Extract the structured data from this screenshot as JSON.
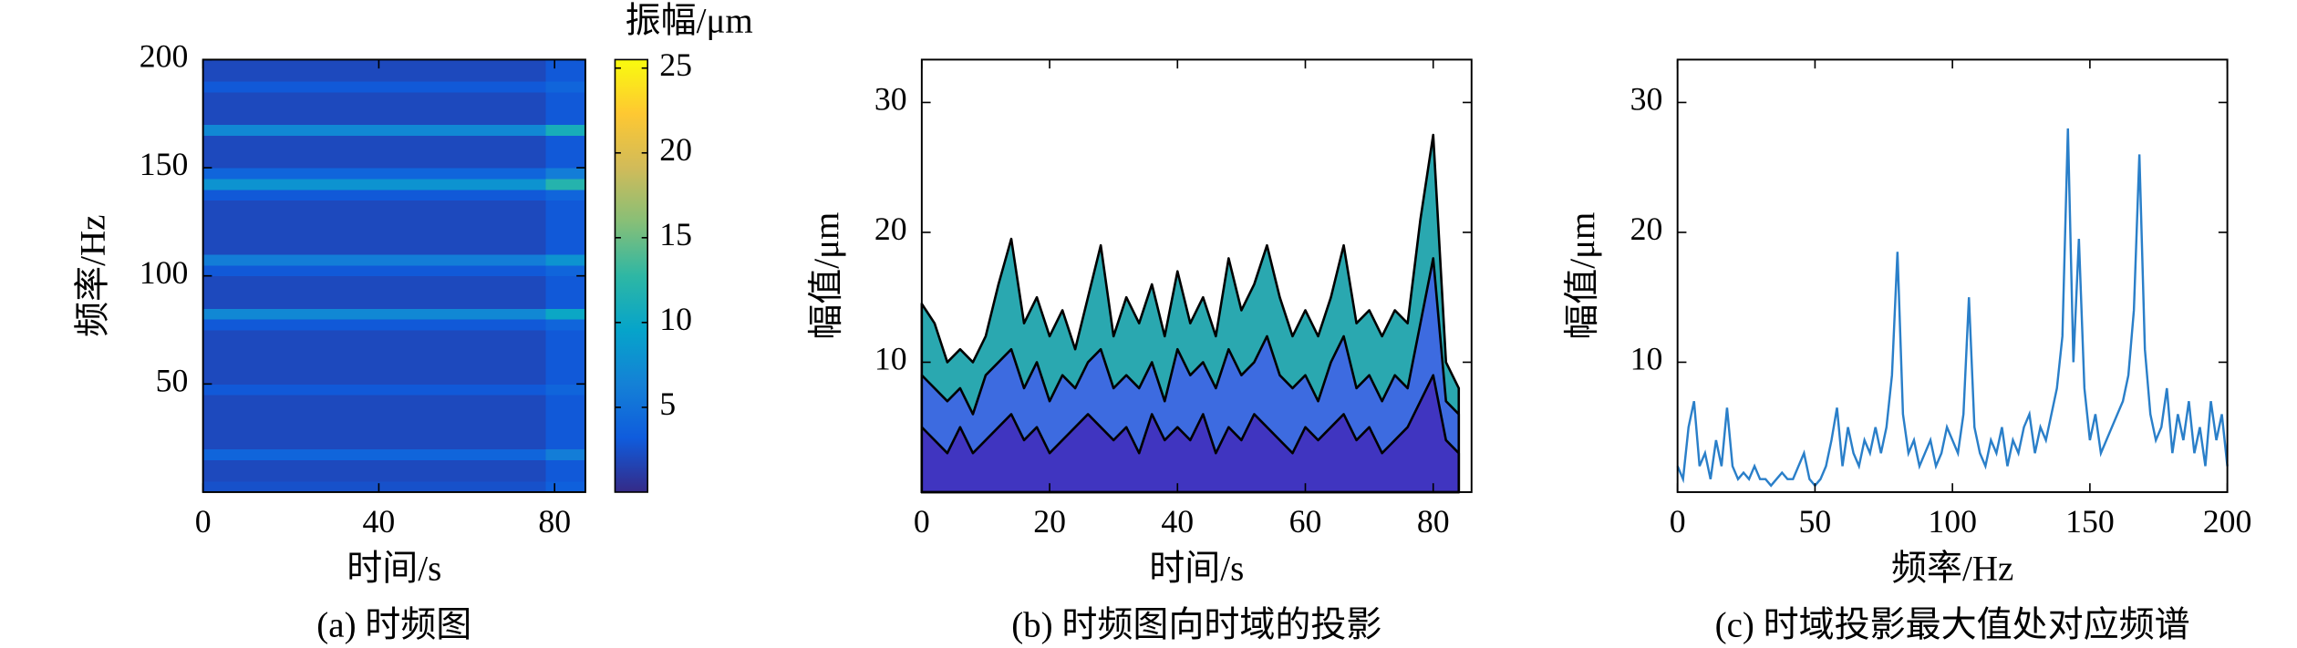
{
  "chart_data": [
    {
      "type": "heatmap",
      "caption": "(a) 时频图",
      "xlabel": "时间/s",
      "ylabel": "频率/Hz",
      "x_bins": [
        0,
        20,
        40,
        60,
        78,
        87
      ],
      "y_bins": [
        0,
        5,
        10,
        15,
        20,
        25,
        30,
        35,
        40,
        45,
        50,
        55,
        60,
        65,
        70,
        75,
        80,
        85,
        90,
        95,
        100,
        105,
        110,
        115,
        120,
        125,
        130,
        135,
        140,
        145,
        150,
        155,
        160,
        165,
        170,
        175,
        180,
        185,
        190,
        195,
        200
      ],
      "z": [
        [
          2.5,
          2.5,
          2.5,
          2.5,
          3.5
        ],
        [
          2,
          2,
          2,
          2,
          3
        ],
        [
          2,
          2,
          2,
          2,
          3
        ],
        [
          4,
          4,
          4,
          4,
          6
        ],
        [
          2,
          2,
          2,
          2,
          3
        ],
        [
          2,
          2,
          2,
          2,
          3
        ],
        [
          2,
          2,
          2,
          2,
          3
        ],
        [
          2,
          2,
          2,
          2,
          3
        ],
        [
          2,
          2,
          2,
          2,
          3
        ],
        [
          3,
          3,
          3,
          3,
          4
        ],
        [
          2,
          2,
          2,
          2,
          3
        ],
        [
          2,
          2,
          2,
          2,
          3
        ],
        [
          2,
          2,
          2,
          2,
          3
        ],
        [
          2,
          2,
          2,
          2,
          3
        ],
        [
          2,
          2,
          2,
          2,
          3
        ],
        [
          3,
          3,
          3,
          3,
          4
        ],
        [
          7,
          7,
          7,
          7,
          10
        ],
        [
          2,
          2,
          2,
          2,
          3
        ],
        [
          2,
          2,
          2,
          2,
          3
        ],
        [
          2,
          2,
          2,
          2,
          3
        ],
        [
          3,
          3,
          3,
          3,
          4
        ],
        [
          6,
          6,
          6,
          6,
          8
        ],
        [
          2,
          2,
          2,
          2,
          3
        ],
        [
          2,
          2,
          2,
          2,
          3
        ],
        [
          2,
          2,
          2,
          2,
          3
        ],
        [
          2,
          2,
          2,
          2,
          3
        ],
        [
          2,
          2,
          2,
          2,
          3
        ],
        [
          3,
          3,
          3,
          3,
          4
        ],
        [
          8,
          8,
          8,
          8,
          12
        ],
        [
          4,
          4,
          4,
          4,
          6
        ],
        [
          2,
          2,
          2,
          2,
          3
        ],
        [
          2,
          2,
          2,
          2,
          3
        ],
        [
          2,
          2,
          2,
          2,
          3
        ],
        [
          7,
          7,
          7,
          7,
          11
        ],
        [
          2,
          2,
          2,
          2,
          3
        ],
        [
          2,
          2,
          2,
          2,
          3
        ],
        [
          2,
          2,
          2,
          2,
          3
        ],
        [
          3,
          3,
          3,
          3,
          4
        ],
        [
          2,
          2,
          2,
          2,
          3
        ],
        [
          2,
          2,
          2,
          2,
          3
        ]
      ],
      "xlim": [
        0,
        87
      ],
      "ylim": [
        0,
        200
      ],
      "xticks": [
        0,
        40,
        80
      ],
      "yticks": [
        50,
        100,
        150,
        200
      ],
      "colormap": [
        "#352a87",
        "#0f5cdd",
        "#1481d6",
        "#06a4ca",
        "#2eb7a4",
        "#87bf77",
        "#d1bb59",
        "#fec832",
        "#f9fb0e"
      ],
      "colorbar": {
        "label": "振幅/μm",
        "lim": [
          0,
          25.5
        ],
        "ticks": [
          5,
          10,
          15,
          20,
          25
        ]
      }
    },
    {
      "type": "area",
      "caption": "(b) 时频图向时域的投影",
      "xlabel": "时间/s",
      "ylabel": "幅值/μm",
      "x": [
        0,
        2,
        4,
        6,
        8,
        10,
        12,
        14,
        16,
        18,
        20,
        22,
        24,
        26,
        28,
        30,
        32,
        34,
        36,
        38,
        40,
        42,
        44,
        46,
        48,
        50,
        52,
        54,
        56,
        58,
        60,
        62,
        64,
        66,
        68,
        70,
        72,
        74,
        76,
        78,
        80,
        82,
        84
      ],
      "series": [
        {
          "color": "#2aa8b0",
          "values": [
            14.5,
            13,
            10,
            11,
            10,
            12,
            16,
            19.5,
            13,
            15,
            12,
            14,
            11,
            15,
            19,
            12,
            15,
            13,
            16,
            12,
            17,
            13,
            15,
            12,
            18,
            14,
            16,
            19,
            15,
            12,
            14,
            12,
            15,
            19,
            13,
            14,
            12,
            14,
            13,
            21,
            27.5,
            10,
            8
          ]
        },
        {
          "color": "#3d6be0",
          "values": [
            9,
            8,
            7,
            8,
            6,
            9,
            10,
            11,
            8,
            10,
            7,
            9,
            8,
            10,
            11,
            8,
            9,
            8,
            10,
            7,
            11,
            9,
            10,
            8,
            11,
            9,
            10,
            12,
            9,
            8,
            9,
            7,
            10,
            12,
            8,
            9,
            7,
            9,
            8,
            13,
            18,
            7,
            6
          ]
        },
        {
          "color": "#4035c0",
          "values": [
            5,
            4,
            3,
            5,
            3,
            4,
            5,
            6,
            4,
            5,
            3,
            4,
            5,
            6,
            5,
            4,
            5,
            3,
            6,
            4,
            5,
            4,
            6,
            3,
            5,
            4,
            6,
            5,
            4,
            3,
            5,
            4,
            5,
            6,
            4,
            5,
            3,
            4,
            5,
            7,
            9,
            4,
            3
          ]
        }
      ],
      "stroke": "#000000",
      "xlim": [
        0,
        86
      ],
      "ylim": [
        0,
        33.3
      ],
      "xticks": [
        0,
        20,
        40,
        60,
        80
      ],
      "yticks": [
        10,
        20,
        30
      ]
    },
    {
      "type": "line",
      "caption": "(c) 时域投影最大值处对应频谱",
      "xlabel": "频率/Hz",
      "ylabel": "幅值/μm",
      "x": [
        0,
        2,
        4,
        6,
        8,
        10,
        12,
        14,
        16,
        18,
        20,
        22,
        24,
        26,
        28,
        30,
        32,
        34,
        36,
        38,
        40,
        42,
        44,
        46,
        48,
        50,
        52,
        54,
        56,
        58,
        60,
        62,
        64,
        66,
        68,
        70,
        72,
        74,
        76,
        78,
        80,
        82,
        84,
        86,
        88,
        90,
        92,
        94,
        96,
        98,
        100,
        102,
        104,
        106,
        108,
        110,
        112,
        114,
        116,
        118,
        120,
        122,
        124,
        126,
        128,
        130,
        132,
        134,
        136,
        138,
        140,
        142,
        144,
        146,
        148,
        150,
        152,
        154,
        156,
        158,
        160,
        162,
        164,
        166,
        168,
        170,
        172,
        174,
        176,
        178,
        180,
        182,
        184,
        186,
        188,
        190,
        192,
        194,
        196,
        198,
        200
      ],
      "values": [
        2,
        1,
        5,
        7,
        2,
        3,
        1,
        4,
        2,
        6.5,
        2,
        1,
        1.5,
        1,
        2,
        1,
        1,
        0.5,
        1,
        1.5,
        1,
        1,
        2,
        3,
        1,
        0.5,
        1,
        2,
        4,
        6.5,
        2,
        5,
        3,
        2,
        4,
        3,
        5,
        3,
        5,
        9,
        18.5,
        6,
        3,
        4,
        2,
        3,
        4,
        2,
        3,
        5,
        4,
        3,
        6,
        15,
        5,
        3,
        2,
        4,
        3,
        5,
        2,
        4,
        3,
        5,
        6,
        3,
        5,
        4,
        6,
        8,
        12,
        28,
        10,
        19.5,
        8,
        4,
        6,
        3,
        4,
        5,
        6,
        7,
        9,
        14,
        26,
        11,
        6,
        4,
        5,
        8,
        3,
        6,
        4,
        7,
        3,
        5,
        2,
        7,
        4,
        6,
        2
      ],
      "color": "#2a7fc9",
      "xlim": [
        0,
        200
      ],
      "ylim": [
        0,
        33.3
      ],
      "xticks": [
        0,
        50,
        100,
        150,
        200
      ],
      "yticks": [
        10,
        20,
        30
      ]
    }
  ]
}
